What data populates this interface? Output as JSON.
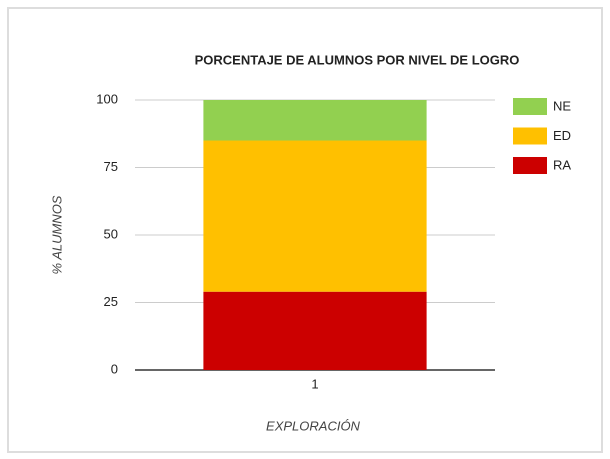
{
  "chart_data": {
    "type": "stacked_bar",
    "title": "PORCENTAJE DE ALUMNOS POR NIVEL DE LOGRO",
    "x_label": "EXPLORACIÓN",
    "y_label": "% ALUMNOS",
    "categories": [
      "1"
    ],
    "series": [
      {
        "name": "RA",
        "color": "#cc0000",
        "values": [
          29
        ]
      },
      {
        "name": "ED",
        "color": "#ffc000",
        "values": [
          56
        ]
      },
      {
        "name": "NE",
        "color": "#92d050",
        "values": [
          15
        ]
      }
    ],
    "ylim": [
      0,
      100
    ],
    "yticks": [
      0,
      25,
      50,
      75,
      100
    ],
    "grid": true,
    "legend": "right"
  }
}
